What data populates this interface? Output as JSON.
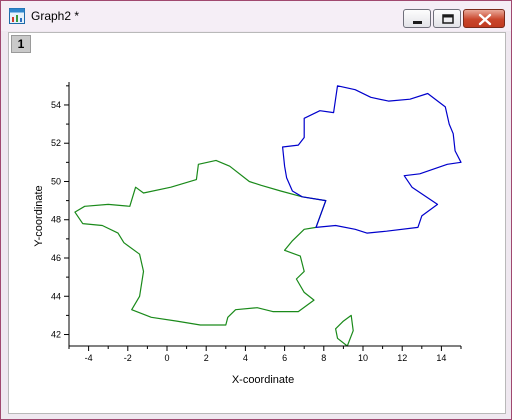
{
  "window": {
    "title": "Graph2 *",
    "layer_label": "1",
    "icons": {
      "app": "graph-window-icon",
      "minimize": "minimize-icon",
      "maximize": "maximize-icon",
      "close": "close-icon"
    }
  },
  "chart_data": {
    "type": "map",
    "xlabel": "X-coordinate",
    "ylabel": "Y-coordinate",
    "xlim": [
      -5,
      15
    ],
    "ylim": [
      41.4,
      55.2
    ],
    "xticks": [
      "-4",
      "-2",
      "0",
      "2",
      "4",
      "6",
      "8",
      "10",
      "12",
      "14"
    ],
    "yticks": [
      "42",
      "44",
      "46",
      "48",
      "50",
      "52",
      "54"
    ],
    "series": [
      {
        "color": "#1a8a1a",
        "outline": [
          [
            -4.7,
            48.4
          ],
          [
            -4.2,
            48.7
          ],
          [
            -3.0,
            48.8
          ],
          [
            -1.9,
            48.7
          ],
          [
            -1.6,
            49.7
          ],
          [
            -1.2,
            49.4
          ],
          [
            0.2,
            49.7
          ],
          [
            1.5,
            50.1
          ],
          [
            1.6,
            50.9
          ],
          [
            2.5,
            51.1
          ],
          [
            3.2,
            50.8
          ],
          [
            4.2,
            50.0
          ],
          [
            4.8,
            49.8
          ],
          [
            5.8,
            49.5
          ],
          [
            6.9,
            49.2
          ],
          [
            8.1,
            49.0
          ],
          [
            7.6,
            47.6
          ],
          [
            7.0,
            47.5
          ],
          [
            6.4,
            46.9
          ],
          [
            6.0,
            46.4
          ],
          [
            6.8,
            46.1
          ],
          [
            7.0,
            45.3
          ],
          [
            6.6,
            44.9
          ],
          [
            7.0,
            44.2
          ],
          [
            7.5,
            43.8
          ],
          [
            6.7,
            43.2
          ],
          [
            5.4,
            43.2
          ],
          [
            4.6,
            43.4
          ],
          [
            3.5,
            43.3
          ],
          [
            3.1,
            42.9
          ],
          [
            3.0,
            42.5
          ],
          [
            1.7,
            42.5
          ],
          [
            0.5,
            42.7
          ],
          [
            -0.8,
            42.9
          ],
          [
            -1.8,
            43.3
          ],
          [
            -1.4,
            44.0
          ],
          [
            -1.2,
            45.3
          ],
          [
            -1.4,
            46.2
          ],
          [
            -2.2,
            46.8
          ],
          [
            -2.5,
            47.3
          ],
          [
            -3.3,
            47.7
          ],
          [
            -4.3,
            47.8
          ],
          [
            -4.7,
            48.4
          ]
        ]
      },
      {
        "color": "#1a8a1a",
        "outline": [
          [
            9.4,
            43.0
          ],
          [
            9.5,
            42.2
          ],
          [
            9.2,
            41.4
          ],
          [
            8.7,
            41.8
          ],
          [
            8.6,
            42.3
          ],
          [
            9.0,
            42.7
          ],
          [
            9.4,
            43.0
          ]
        ]
      },
      {
        "color": "#0000cc",
        "outline": [
          [
            8.7,
            55.0
          ],
          [
            9.6,
            54.8
          ],
          [
            10.4,
            54.4
          ],
          [
            11.3,
            54.2
          ],
          [
            12.4,
            54.3
          ],
          [
            13.3,
            54.6
          ],
          [
            14.2,
            53.9
          ],
          [
            14.4,
            53.0
          ],
          [
            14.6,
            52.5
          ],
          [
            14.7,
            51.6
          ],
          [
            15.0,
            51.0
          ],
          [
            14.3,
            50.9
          ],
          [
            12.9,
            50.4
          ],
          [
            12.1,
            50.3
          ],
          [
            12.5,
            49.7
          ],
          [
            13.8,
            48.8
          ],
          [
            13.0,
            48.2
          ],
          [
            12.8,
            47.6
          ],
          [
            11.2,
            47.4
          ],
          [
            10.2,
            47.3
          ],
          [
            9.6,
            47.5
          ],
          [
            8.6,
            47.7
          ],
          [
            7.6,
            47.6
          ],
          [
            8.1,
            49.0
          ],
          [
            6.9,
            49.2
          ],
          [
            6.4,
            49.5
          ],
          [
            6.1,
            50.2
          ],
          [
            6.0,
            50.8
          ],
          [
            5.9,
            51.8
          ],
          [
            6.7,
            51.9
          ],
          [
            7.0,
            52.3
          ],
          [
            7.0,
            53.3
          ],
          [
            7.8,
            53.7
          ],
          [
            8.5,
            53.6
          ],
          [
            8.7,
            55.0
          ]
        ]
      }
    ]
  }
}
